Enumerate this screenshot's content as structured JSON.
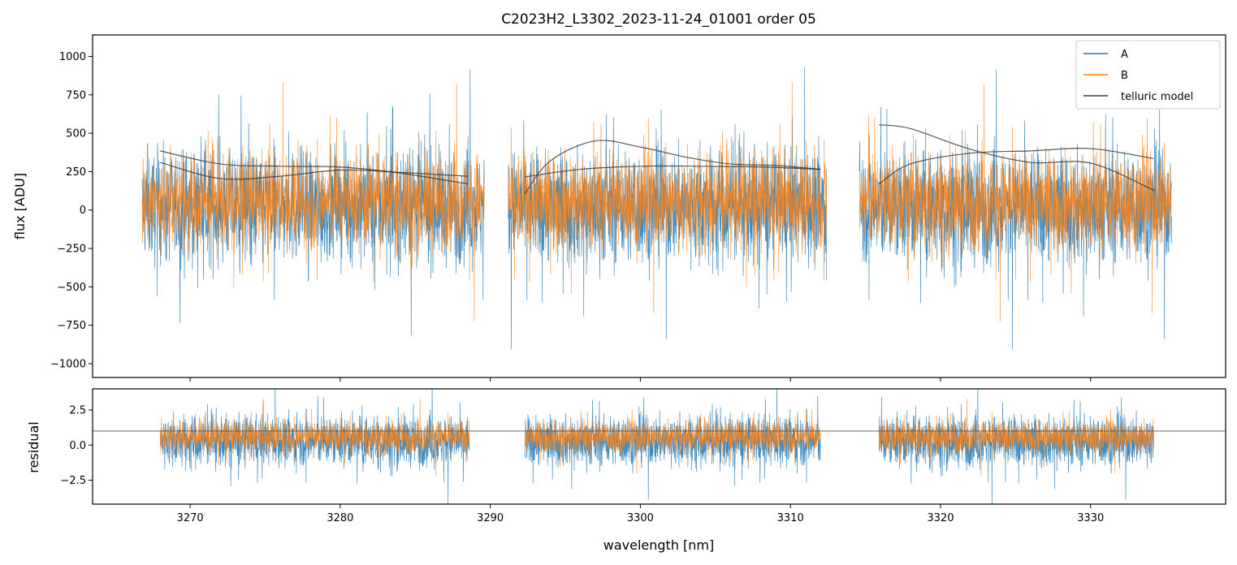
{
  "chart_data": [
    {
      "type": "line",
      "panel": "main",
      "title": "C2023H2_L3302_2023-11-24_01001  order 05",
      "xlabel": "",
      "ylabel": "flux [ADU]",
      "xlim": [
        3263.5,
        3339
      ],
      "ylim": [
        -1090,
        1140
      ],
      "yticks": [
        -1000,
        -750,
        -500,
        -250,
        0,
        250,
        500,
        750,
        1000
      ],
      "ytick_labels": [
        "−1000",
        "−750",
        "−500",
        "−250",
        "0",
        "250",
        "500",
        "750",
        "1000"
      ],
      "xticks": [
        3270,
        3280,
        3290,
        3300,
        3310,
        3320,
        3330
      ],
      "legend_position": "top-right",
      "segments": [
        {
          "x_start": 3266.8,
          "x_end": 3289.6
        },
        {
          "x_start": 3291.2,
          "x_end": 3312.4
        },
        {
          "x_start": 3314.6,
          "x_end": 3335.4
        }
      ],
      "series": [
        {
          "name": "A",
          "color": "#1f77b4",
          "kind": "noisy-spectrum",
          "center": 20,
          "spread": 330
        },
        {
          "name": "B",
          "color": "#ff7f0e",
          "kind": "noisy-spectrum",
          "center": 60,
          "spread": 280
        },
        {
          "name": "telluric model",
          "color": "#3a3a3a",
          "kind": "model",
          "curves": [
            {
              "x": [
                3268,
                3272,
                3276,
                3280,
                3284,
                3288.5
              ],
              "y": [
                310,
                205,
                220,
                260,
                245,
                220
              ]
            },
            {
              "x": [
                3268,
                3272,
                3276,
                3280,
                3284,
                3288.5
              ],
              "y": [
                385,
                300,
                285,
                280,
                240,
                170
              ]
            },
            {
              "x": [
                3292.3,
                3294,
                3297,
                3300,
                3303,
                3306,
                3309,
                3312
              ],
              "y": [
                105,
                320,
                450,
                410,
                345,
                300,
                290,
                265
              ]
            },
            {
              "x": [
                3292.3,
                3296,
                3300,
                3304,
                3308,
                3312
              ],
              "y": [
                215,
                265,
                285,
                285,
                280,
                265
              ]
            },
            {
              "x": [
                3315.9,
                3318,
                3322,
                3326,
                3330,
                3334.2
              ],
              "y": [
                555,
                530,
                395,
                310,
                305,
                130
              ]
            },
            {
              "x": [
                3315.9,
                3318,
                3322,
                3326,
                3330,
                3334.2
              ],
              "y": [
                170,
                300,
                370,
                385,
                400,
                335
              ]
            }
          ]
        }
      ]
    },
    {
      "type": "line",
      "panel": "residual",
      "title": "",
      "xlabel": "wavelength [nm]",
      "ylabel": "residual",
      "xlim": [
        3263.5,
        3339
      ],
      "ylim": [
        -4.2,
        4.0
      ],
      "yticks": [
        -2.5,
        0.0,
        2.5
      ],
      "ytick_labels": [
        "−2.5",
        "0.0",
        "2.5"
      ],
      "xticks": [
        3270,
        3280,
        3290,
        3300,
        3310,
        3320,
        3330
      ],
      "xtick_labels": [
        "3270",
        "3280",
        "3290",
        "3300",
        "3310",
        "3320",
        "3330"
      ],
      "reference_line": 1.0,
      "segments": [
        {
          "x_start": 3268.0,
          "x_end": 3288.6
        },
        {
          "x_start": 3292.3,
          "x_end": 3312.0
        },
        {
          "x_start": 3315.9,
          "x_end": 3334.2
        }
      ],
      "series": [
        {
          "name": "A",
          "color": "#1f77b4",
          "kind": "noisy-residual",
          "center": 0.3,
          "spread": 1.6
        },
        {
          "name": "B",
          "color": "#ff7f0e",
          "kind": "noisy-residual",
          "center": 0.6,
          "spread": 1.0
        }
      ]
    }
  ]
}
